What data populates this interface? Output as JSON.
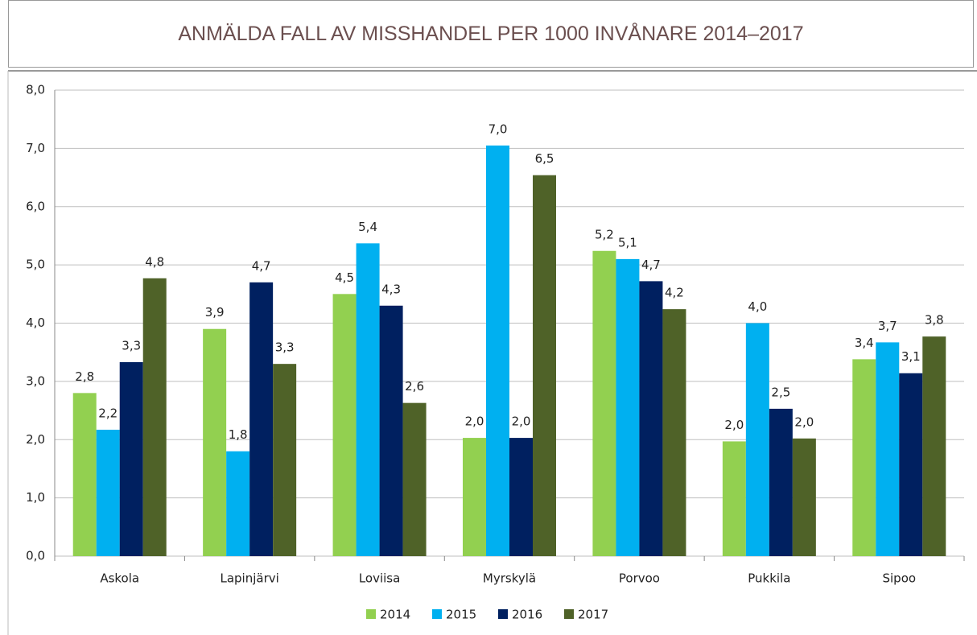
{
  "chart_data": {
    "type": "bar",
    "title": "ANMÄLDA FALL AV MISSHANDEL PER 1000 INVÅNARE 2014–2017",
    "categories": [
      "Askola",
      "Lapinjärvi",
      "Loviisa",
      "Myrskylä",
      "Porvoo",
      "Pukkila",
      "Sipoo"
    ],
    "series": [
      {
        "name": "2014",
        "color": "#92d050",
        "values": [
          2.8,
          3.9,
          4.5,
          2.03,
          5.24,
          1.97,
          3.38
        ],
        "value_labels": [
          "2,8",
          "3,9",
          "4,5",
          "2,0",
          "5,2",
          "2,0",
          "3,4"
        ]
      },
      {
        "name": "2015",
        "color": "#00b0f0",
        "values": [
          2.17,
          1.8,
          5.37,
          7.05,
          5.1,
          4.0,
          3.67
        ],
        "value_labels": [
          "2,2",
          "1,8",
          "5,4",
          "7,0",
          "5,1",
          "4,0",
          "3,7"
        ]
      },
      {
        "name": "2016",
        "color": "#002060",
        "values": [
          3.33,
          4.7,
          4.3,
          2.03,
          4.72,
          2.53,
          3.14
        ],
        "value_labels": [
          "3,3",
          "4,7",
          "4,3",
          "2,0",
          "4,7",
          "2,5",
          "3,1"
        ]
      },
      {
        "name": "2017",
        "color": "#4f6228",
        "values": [
          4.77,
          3.3,
          2.63,
          6.54,
          4.24,
          2.02,
          3.77
        ],
        "value_labels": [
          "4,8",
          "3,3",
          "2,6",
          "6,5",
          "4,2",
          "2,0",
          "3,8"
        ]
      }
    ],
    "ylim": [
      0,
      8
    ],
    "yticks": [
      {
        "value": 0,
        "label": "0,0"
      },
      {
        "value": 1,
        "label": "1,0"
      },
      {
        "value": 2,
        "label": "2,0"
      },
      {
        "value": 3,
        "label": "3,0"
      },
      {
        "value": 4,
        "label": "4,0"
      },
      {
        "value": 5,
        "label": "5,0"
      },
      {
        "value": 6,
        "label": "6,0"
      },
      {
        "value": 7,
        "label": "7,0"
      },
      {
        "value": 8,
        "label": "8,0"
      }
    ],
    "grid": true,
    "legend": "bottom"
  }
}
